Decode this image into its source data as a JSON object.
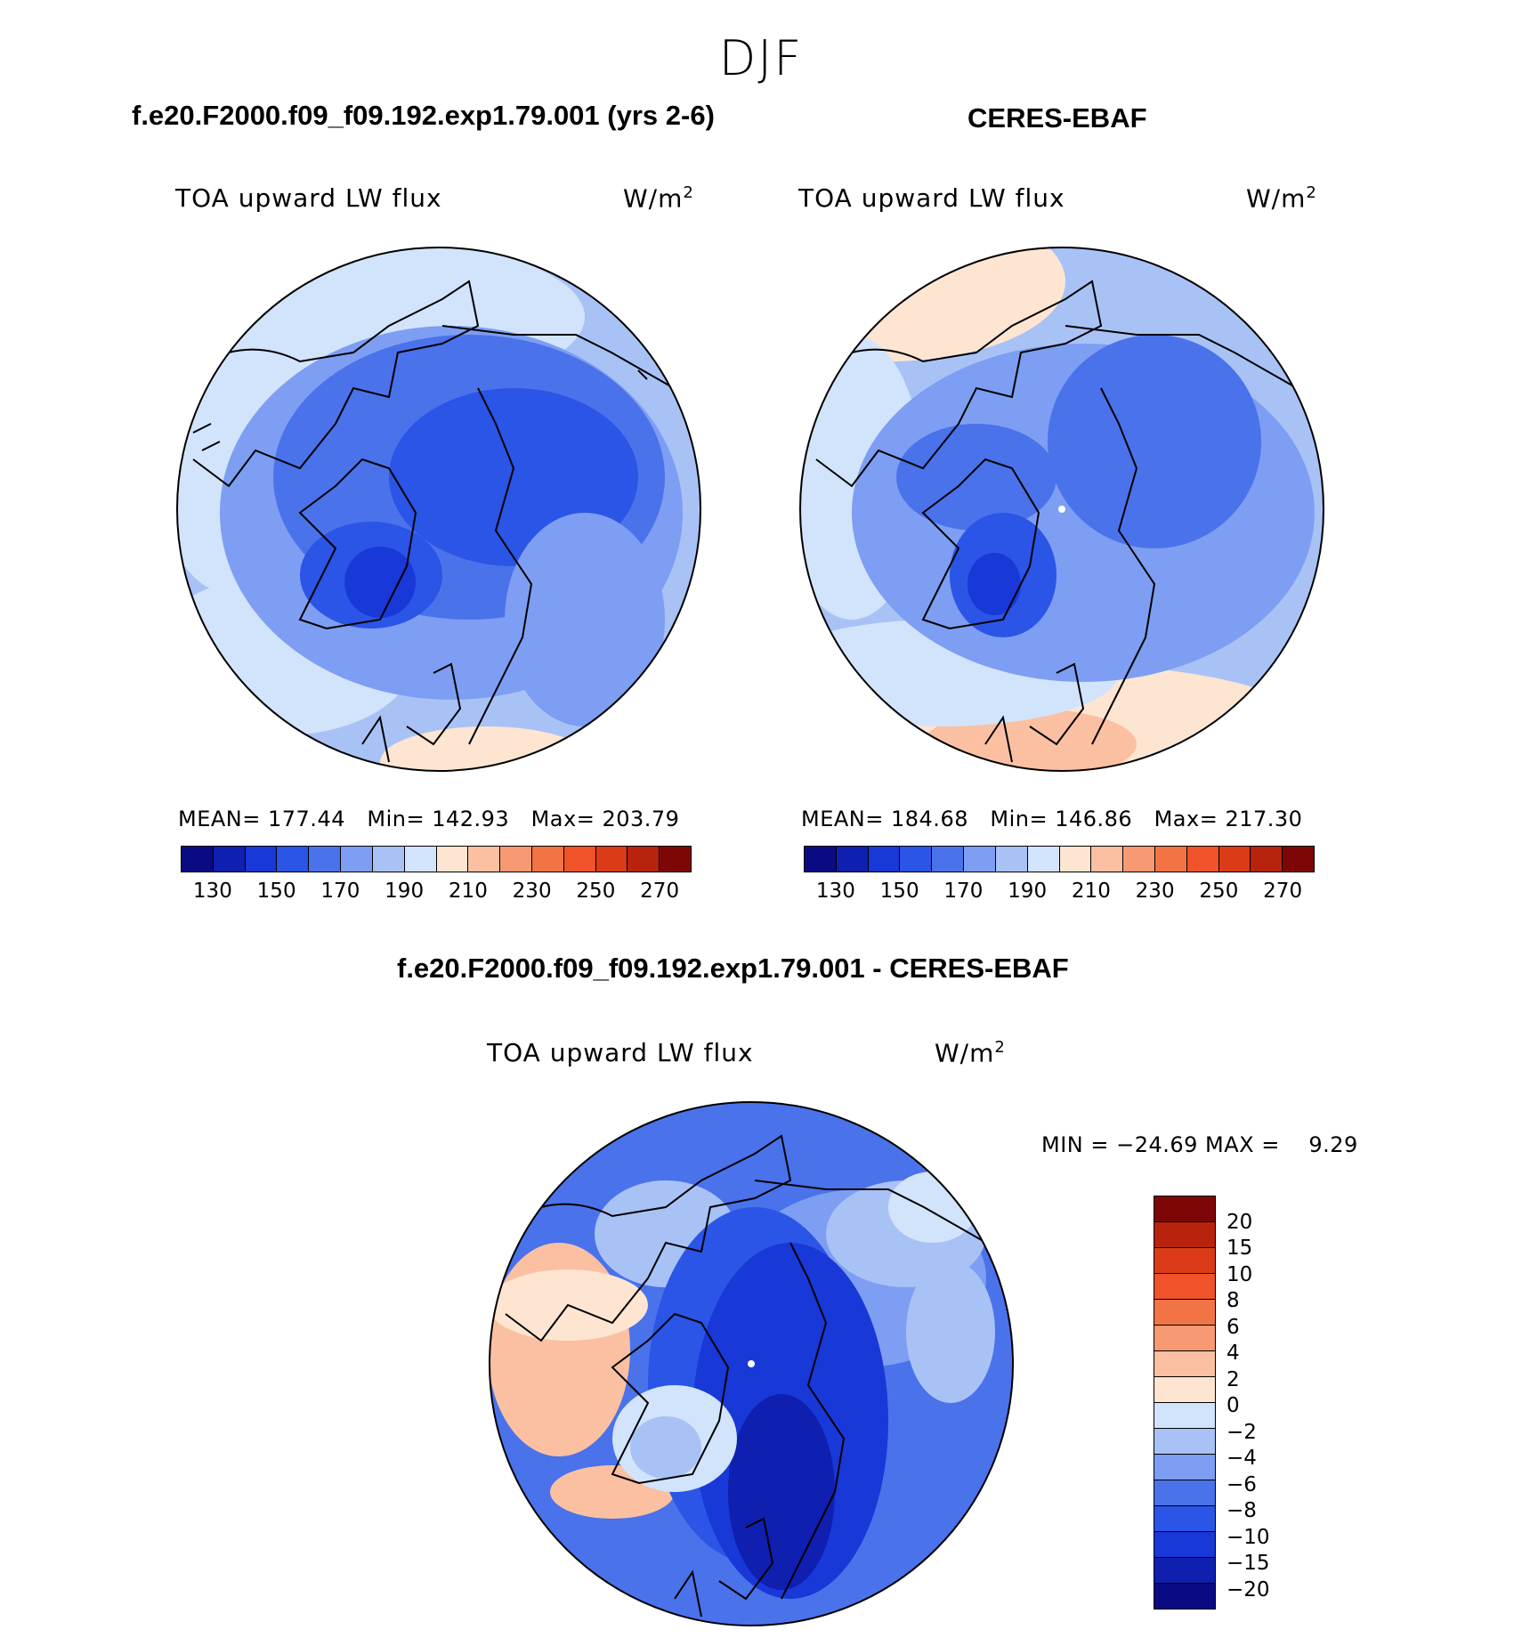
{
  "season": "DJF",
  "panels": {
    "model": {
      "header": "f.e20.F2000.f09_f09.192.exp1.79.001 (yrs 2-6)",
      "variable": "TOA upward LW flux",
      "units": "W/m",
      "units_sup": "2",
      "stats": {
        "mean_label": "MEAN=",
        "mean": "177.44",
        "min_label": "Min=",
        "min": "142.93",
        "max_label": "Max=",
        "max": "203.79"
      }
    },
    "obs": {
      "header": "CERES-EBAF",
      "variable": "TOA upward LW flux",
      "units": "W/m",
      "units_sup": "2",
      "stats": {
        "mean_label": "MEAN=",
        "mean": "184.68",
        "min_label": "Min=",
        "min": "146.86",
        "max_label": "Max=",
        "max": "217.30"
      }
    },
    "diff": {
      "header": "f.e20.F2000.f09_f09.192.exp1.79.001 - CERES-EBAF",
      "variable": "TOA upward LW flux",
      "units": "W/m",
      "units_sup": "2",
      "minmax": "MIN = −24.69 MAX =    9.29"
    }
  },
  "colorbar_abs": {
    "colors": [
      "#0a0a82",
      "#0f1fb0",
      "#1838d8",
      "#2a55e6",
      "#4a72ea",
      "#7d9ef2",
      "#a9c2f6",
      "#d2e4fb",
      "#fde5d2",
      "#fbc0a2",
      "#f79a73",
      "#f27445",
      "#f0522a",
      "#dc3b17",
      "#b8230e",
      "#7d0606"
    ],
    "ticks": [
      "130",
      "150",
      "170",
      "190",
      "210",
      "230",
      "250",
      "270"
    ]
  },
  "colorbar_diff": {
    "colors": [
      "#7d0606",
      "#b8230e",
      "#dc3b17",
      "#f0522a",
      "#f27445",
      "#f79a73",
      "#fbc0a2",
      "#fde5d2",
      "#d2e4fb",
      "#a9c2f6",
      "#7d9ef2",
      "#4a72ea",
      "#2a55e6",
      "#1838d8",
      "#0f1fb0",
      "#0a0a82"
    ],
    "ticks": [
      "20",
      "15",
      "10",
      "8",
      "6",
      "4",
      "2",
      "0",
      "−2",
      "−4",
      "−6",
      "−8",
      "−10",
      "−15",
      "−20"
    ]
  }
}
